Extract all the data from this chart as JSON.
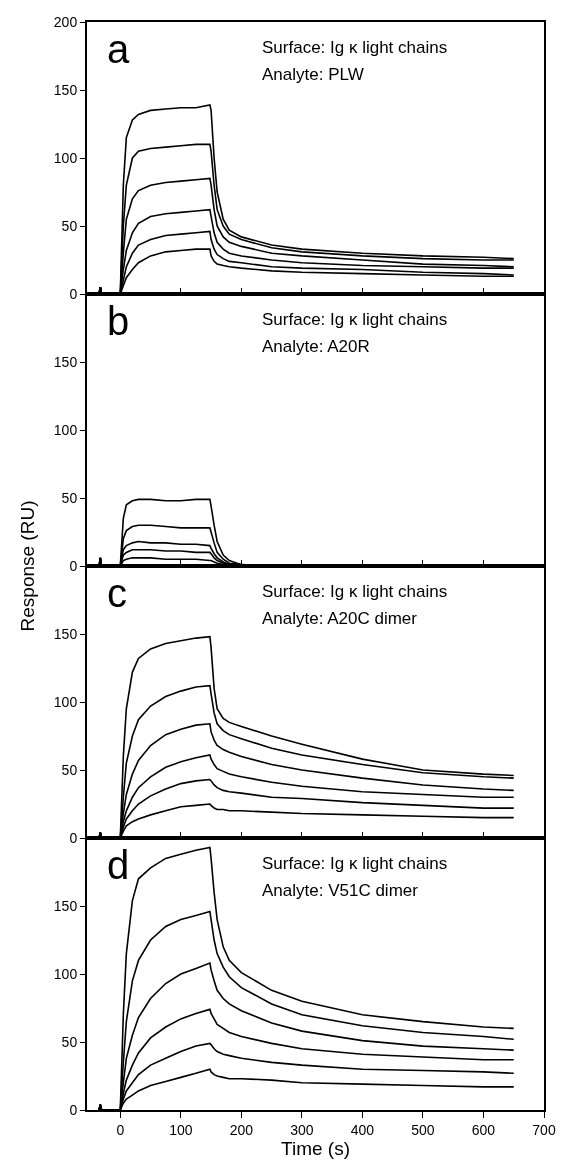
{
  "chart_data": [
    {
      "type": "line",
      "title": "a",
      "annotations": [
        "Surface: Ig κ light chains",
        "Analyte: PLW"
      ],
      "x": [
        -35,
        -33,
        -31,
        0,
        5,
        10,
        20,
        30,
        50,
        75,
        100,
        125,
        148,
        150,
        155,
        160,
        170,
        180,
        200,
        250,
        300,
        400,
        500,
        600,
        650
      ],
      "series": [
        {
          "color": "#000000",
          "values": [
            0,
            5,
            0,
            0,
            80,
            115,
            128,
            132,
            135,
            136,
            137,
            137,
            139,
            135,
            100,
            75,
            55,
            47,
            42,
            36,
            33,
            30,
            28,
            27,
            26
          ]
        },
        {
          "color": "#000000",
          "values": [
            0,
            5,
            0,
            0,
            50,
            80,
            100,
            105,
            107,
            108,
            109,
            110,
            110,
            105,
            80,
            62,
            50,
            44,
            40,
            34,
            31,
            28,
            26,
            25,
            25
          ]
        },
        {
          "color": "#000000",
          "values": [
            0,
            5,
            0,
            0,
            30,
            55,
            70,
            76,
            80,
            82,
            83,
            84,
            85,
            80,
            62,
            50,
            42,
            38,
            35,
            30,
            28,
            25,
            22,
            21,
            20
          ]
        },
        {
          "color": "#000000",
          "values": [
            0,
            5,
            0,
            0,
            18,
            32,
            45,
            52,
            57,
            59,
            60,
            61,
            62,
            57,
            45,
            38,
            33,
            30,
            28,
            25,
            23,
            21,
            20,
            19,
            19
          ]
        },
        {
          "color": "#000000",
          "values": [
            0,
            5,
            0,
            0,
            10,
            20,
            30,
            36,
            40,
            43,
            44,
            45,
            46,
            40,
            33,
            29,
            26,
            24,
            23,
            20,
            19,
            18,
            16,
            15,
            14
          ]
        },
        {
          "color": "#000000",
          "values": [
            0,
            5,
            0,
            0,
            6,
            12,
            18,
            23,
            28,
            31,
            32,
            33,
            33,
            28,
            24,
            22,
            21,
            20,
            19,
            17,
            16,
            15,
            14,
            13,
            13
          ]
        }
      ],
      "xlim": [
        -55,
        700
      ],
      "xticks": [
        0,
        100,
        200,
        300,
        400,
        500,
        600,
        700
      ],
      "ylim": [
        0,
        200
      ],
      "yticks": [
        0,
        50,
        100,
        150,
        200
      ],
      "tick_labels": "y",
      "grid": false,
      "marker": "none",
      "line_style": "solid"
    },
    {
      "type": "line",
      "title": "b",
      "ylabel": "Response (RU)",
      "annotations": [
        "Surface: Ig κ light chains",
        "Analyte: A20R"
      ],
      "x": [
        -35,
        -33,
        -31,
        0,
        5,
        10,
        20,
        30,
        50,
        75,
        100,
        125,
        148,
        150,
        155,
        160,
        170,
        180,
        200,
        250,
        300,
        400,
        500,
        600,
        650
      ],
      "series": [
        {
          "color": "#000000",
          "values": [
            0,
            6,
            0,
            0,
            35,
            45,
            48,
            49,
            49,
            48,
            48,
            49,
            49,
            44,
            30,
            18,
            8,
            4,
            1,
            0,
            0,
            0,
            0,
            0,
            0
          ]
        },
        {
          "color": "#000000",
          "values": [
            0,
            6,
            0,
            0,
            20,
            26,
            29,
            30,
            30,
            29,
            28,
            28,
            28,
            25,
            17,
            10,
            5,
            2,
            1,
            0,
            0,
            0,
            0,
            0,
            0
          ]
        },
        {
          "color": "#000000",
          "values": [
            0,
            6,
            0,
            0,
            12,
            15,
            17,
            18,
            17,
            17,
            16,
            16,
            15,
            13,
            9,
            6,
            3,
            1,
            0,
            0,
            0,
            0,
            0,
            0,
            0
          ]
        },
        {
          "color": "#000000",
          "values": [
            0,
            6,
            0,
            0,
            8,
            10,
            12,
            12,
            12,
            11,
            11,
            10,
            10,
            9,
            6,
            4,
            2,
            1,
            0,
            0,
            0,
            0,
            0,
            0,
            0
          ]
        },
        {
          "color": "#000000",
          "values": [
            0,
            6,
            0,
            0,
            4,
            5,
            6,
            6,
            6,
            5,
            5,
            5,
            4,
            4,
            3,
            2,
            1,
            0,
            0,
            0,
            0,
            0,
            0,
            0,
            0
          ]
        }
      ],
      "xlim": [
        -55,
        700
      ],
      "xticks": [
        0,
        100,
        200,
        300,
        400,
        500,
        600,
        700
      ],
      "ylim": [
        0,
        200
      ],
      "yticks": [
        0,
        50,
        100,
        150
      ],
      "tick_labels": "y",
      "grid": false,
      "marker": "none",
      "line_style": "solid"
    },
    {
      "type": "line",
      "title": "c",
      "annotations": [
        "Surface: Ig κ light chains",
        "Analyte: A20C dimer"
      ],
      "x": [
        -35,
        -33,
        -31,
        0,
        5,
        10,
        20,
        30,
        50,
        75,
        100,
        125,
        148,
        150,
        155,
        160,
        170,
        180,
        200,
        250,
        300,
        400,
        500,
        600,
        650
      ],
      "series": [
        {
          "color": "#000000",
          "values": [
            0,
            4,
            0,
            0,
            60,
            95,
            122,
            132,
            139,
            143,
            145,
            147,
            148,
            140,
            110,
            95,
            88,
            85,
            82,
            75,
            69,
            58,
            50,
            47,
            46
          ]
        },
        {
          "color": "#000000",
          "values": [
            0,
            4,
            0,
            0,
            30,
            55,
            75,
            87,
            97,
            104,
            108,
            111,
            112,
            106,
            92,
            84,
            79,
            76,
            73,
            66,
            61,
            54,
            48,
            45,
            44
          ]
        },
        {
          "color": "#000000",
          "values": [
            0,
            4,
            0,
            0,
            18,
            32,
            47,
            57,
            68,
            76,
            80,
            83,
            84,
            78,
            72,
            68,
            65,
            63,
            60,
            54,
            50,
            44,
            39,
            36,
            35
          ]
        },
        {
          "color": "#000000",
          "values": [
            0,
            4,
            0,
            0,
            12,
            20,
            30,
            37,
            45,
            52,
            56,
            59,
            61,
            58,
            54,
            51,
            49,
            47,
            45,
            41,
            38,
            34,
            32,
            30,
            30
          ]
        },
        {
          "color": "#000000",
          "values": [
            0,
            4,
            0,
            0,
            8,
            14,
            20,
            25,
            31,
            36,
            40,
            42,
            43,
            42,
            39,
            37,
            35,
            34,
            33,
            30,
            29,
            26,
            24,
            22,
            22
          ]
        },
        {
          "color": "#000000",
          "values": [
            0,
            4,
            0,
            0,
            5,
            9,
            12,
            14,
            17,
            20,
            23,
            24,
            25,
            24,
            22,
            21,
            21,
            20,
            20,
            19,
            18,
            17,
            16,
            15,
            15
          ]
        }
      ],
      "xlim": [
        -55,
        700
      ],
      "xticks": [
        0,
        100,
        200,
        300,
        400,
        500,
        600,
        700
      ],
      "ylim": [
        0,
        200
      ],
      "yticks": [
        0,
        50,
        100,
        150
      ],
      "tick_labels": "y",
      "grid": false,
      "marker": "none",
      "line_style": "solid"
    },
    {
      "type": "line",
      "title": "d",
      "xlabel": "Time (s)",
      "annotations": [
        "Surface: Ig κ light chains",
        "Analyte: V51C dimer"
      ],
      "x": [
        -35,
        -33,
        -31,
        0,
        5,
        10,
        20,
        30,
        50,
        75,
        100,
        125,
        148,
        150,
        155,
        160,
        170,
        180,
        200,
        250,
        300,
        400,
        500,
        600,
        650
      ],
      "series": [
        {
          "color": "#000000",
          "values": [
            0,
            4,
            0,
            0,
            70,
            115,
            154,
            170,
            178,
            185,
            188,
            191,
            193,
            185,
            160,
            140,
            120,
            110,
            101,
            88,
            80,
            70,
            65,
            61,
            60
          ]
        },
        {
          "color": "#000000",
          "values": [
            0,
            4,
            0,
            0,
            35,
            65,
            95,
            110,
            125,
            135,
            140,
            143,
            146,
            140,
            125,
            115,
            105,
            98,
            90,
            78,
            70,
            62,
            57,
            54,
            52
          ]
        },
        {
          "color": "#000000",
          "values": [
            0,
            4,
            0,
            0,
            20,
            38,
            55,
            68,
            82,
            93,
            100,
            104,
            108,
            103,
            95,
            88,
            82,
            78,
            73,
            64,
            58,
            51,
            47,
            45,
            44
          ]
        },
        {
          "color": "#000000",
          "values": [
            0,
            4,
            0,
            0,
            12,
            22,
            33,
            42,
            53,
            61,
            67,
            71,
            74,
            71,
            67,
            63,
            60,
            57,
            54,
            49,
            45,
            41,
            39,
            37,
            37
          ]
        },
        {
          "color": "#000000",
          "values": [
            0,
            4,
            0,
            0,
            8,
            14,
            20,
            26,
            33,
            38,
            43,
            47,
            49,
            48,
            45,
            43,
            41,
            40,
            38,
            35,
            33,
            30,
            29,
            28,
            27
          ]
        },
        {
          "color": "#000000",
          "values": [
            0,
            4,
            0,
            0,
            5,
            8,
            11,
            14,
            18,
            21,
            24,
            27,
            30,
            28,
            26,
            25,
            24,
            23,
            23,
            22,
            20,
            19,
            18,
            17,
            17
          ]
        }
      ],
      "xlim": [
        -55,
        700
      ],
      "xticks": [
        0,
        100,
        200,
        300,
        400,
        500,
        600,
        700
      ],
      "ylim": [
        0,
        200
      ],
      "yticks": [
        0,
        50,
        100,
        150
      ],
      "grid": false,
      "marker": "none",
      "line_style": "solid"
    }
  ]
}
